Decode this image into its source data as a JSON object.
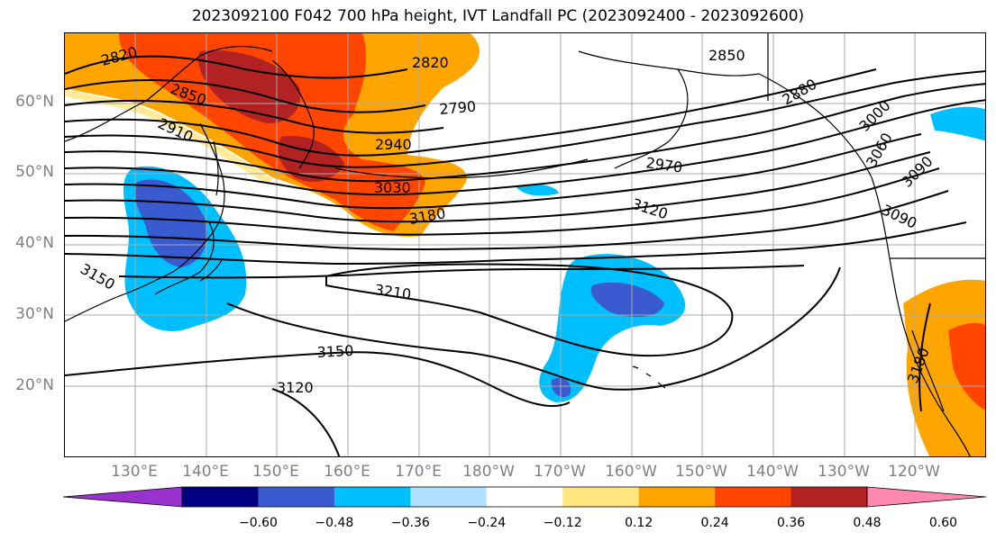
{
  "title": "2023092100 F042 700 hPa height, IVT Landfall PC (2023092400 - 2023092600)",
  "lat_labels": [
    "60°N",
    "50°N",
    "40°N",
    "30°N",
    "20°N"
  ],
  "lon_labels": [
    "130°E",
    "140°E",
    "150°E",
    "160°E",
    "170°E",
    "180°W",
    "170°W",
    "160°W",
    "150°W",
    "140°W",
    "130°W",
    "120°W"
  ],
  "contour_labels": [
    "2820",
    "2820",
    "2850",
    "2850",
    "2790",
    "2880",
    "2910",
    "2940",
    "2970",
    "3000",
    "3030",
    "3060",
    "3090",
    "3090",
    "3120",
    "3150",
    "3180",
    "3180",
    "3210",
    "3150",
    "3120"
  ],
  "colorbar": {
    "ticks": [
      "−0.60",
      "−0.48",
      "−0.36",
      "−0.24",
      "−0.12",
      "0.12",
      "0.24",
      "0.36",
      "0.48",
      "0.60"
    ],
    "colors": [
      "#9932cc",
      "#000080",
      "#3a5bd0",
      "#00bfff",
      "#b0e0ff",
      "#ffffff",
      "#ffe680",
      "#ffa500",
      "#ff4500",
      "#b22222",
      "#ff88b0"
    ]
  },
  "colors": {
    "gridline": "#a9a9a9",
    "coastline": "#000000",
    "contour": "#000000",
    "axis_label": "#808080"
  }
}
